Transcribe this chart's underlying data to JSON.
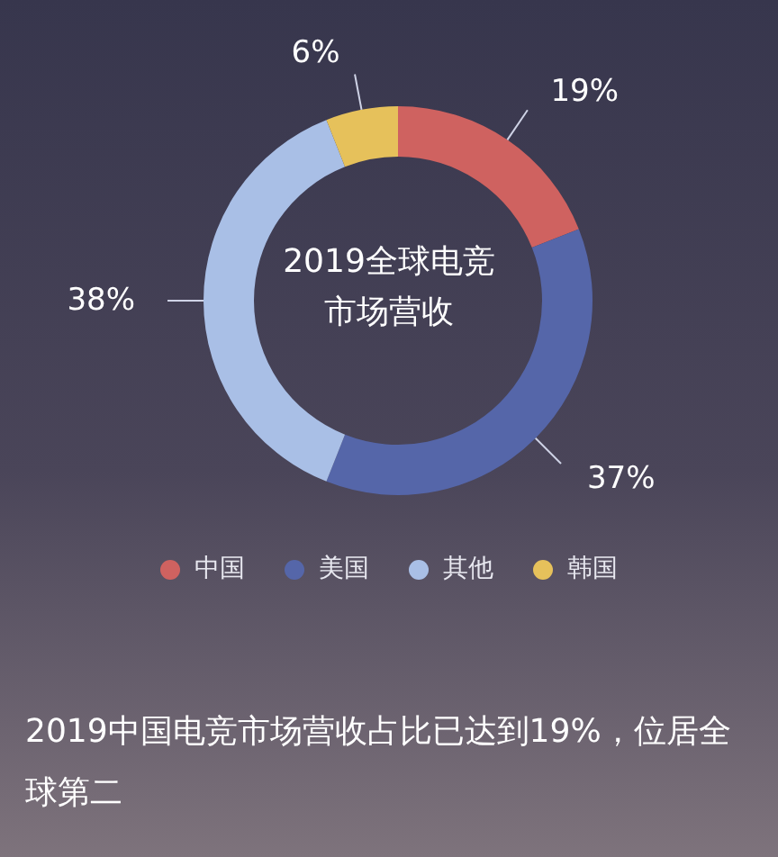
{
  "chart_data": {
    "type": "donut",
    "title": "2019全球电竞市场营收",
    "categories": [
      "中国",
      "美国",
      "其他",
      "韩国"
    ],
    "values": [
      19,
      37,
      38,
      6
    ],
    "colors": [
      "#cf6260",
      "#5566a9",
      "#a9bfe6",
      "#e6c15b"
    ],
    "value_labels": [
      "19%",
      "37%",
      "38%",
      "6%"
    ],
    "legend": "bottom",
    "annotations": [
      "2019中国电竞市场营收占比已达到19%，位居全球第二"
    ]
  }
}
